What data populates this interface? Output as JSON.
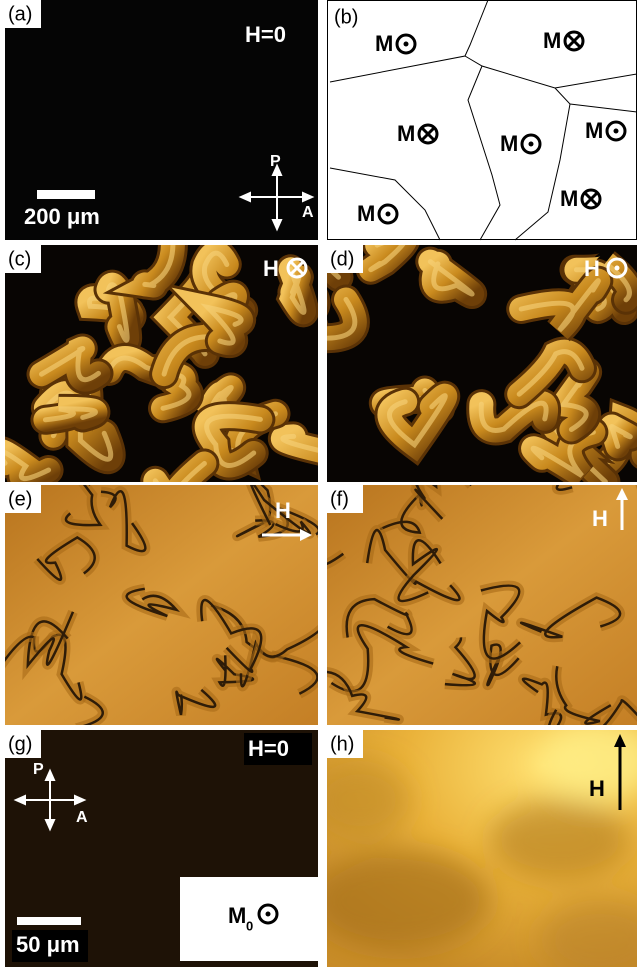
{
  "panels": [
    {
      "label": "(a)",
      "field": "H=0",
      "scale_bar": "200 μm",
      "polarizer": "P",
      "analyzer": "A"
    },
    {
      "label": "(b)",
      "domains": [
        "M",
        "M",
        "M",
        "M",
        "M",
        "M",
        "M"
      ]
    },
    {
      "label": "(c)",
      "field": "H"
    },
    {
      "label": "(d)",
      "field": "H"
    },
    {
      "label": "(e)",
      "field": "H"
    },
    {
      "label": "(f)",
      "field": "H"
    },
    {
      "label": "(g)",
      "field": "H=0",
      "polarizer": "P",
      "analyzer": "A",
      "scale_bar": "50 μm",
      "magnetization": "M",
      "subscript": "0"
    },
    {
      "label": "(h)",
      "field": "H"
    }
  ]
}
